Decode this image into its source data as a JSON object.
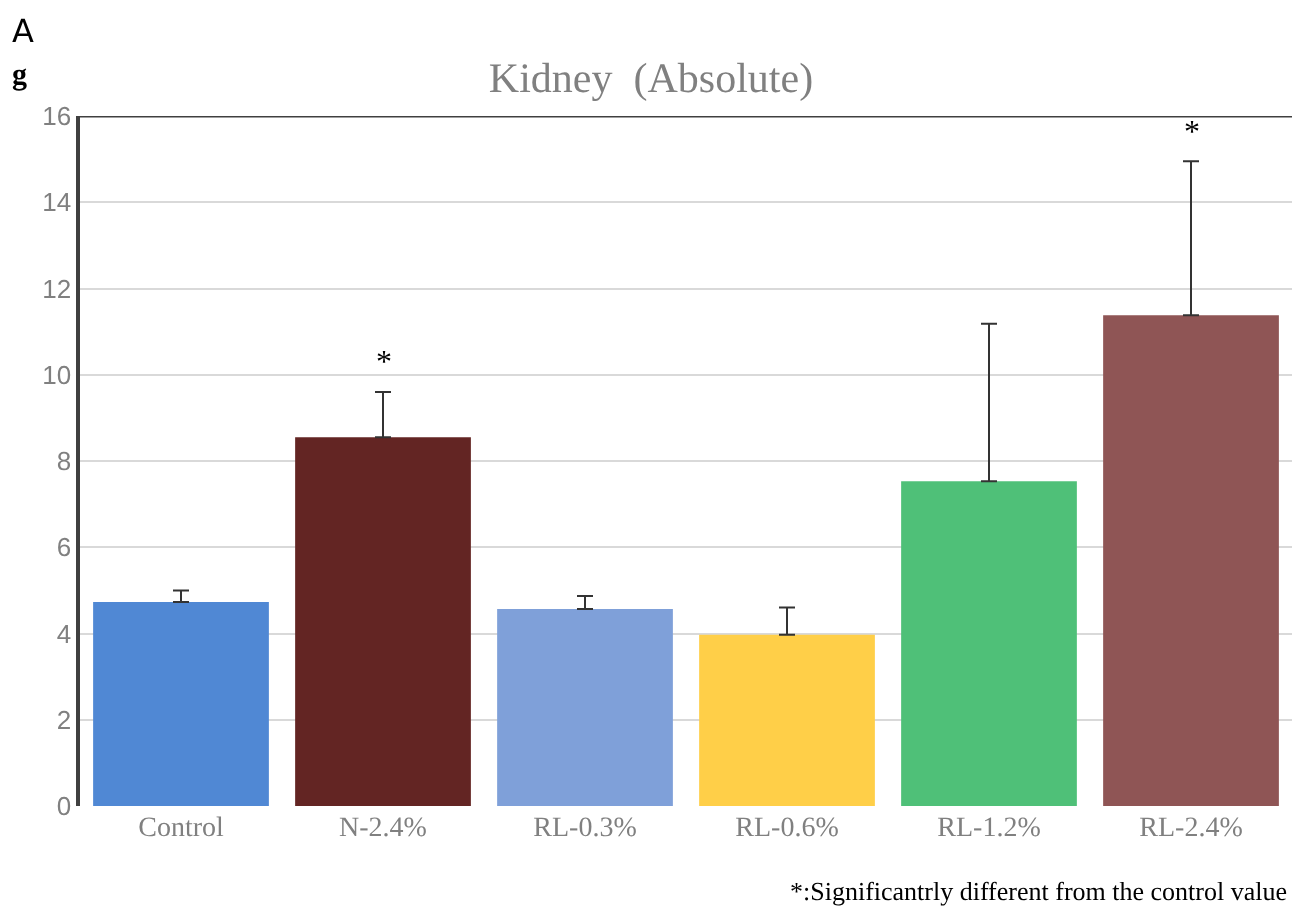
{
  "chart_data": {
    "type": "bar",
    "title": "Kidney  (Absolute)",
    "ylabel": "g",
    "categories": [
      "Control",
      "N-2.4%",
      "RL-0.3%",
      "RL-0.6%",
      "RL-1.2%",
      "RL-2.4%"
    ],
    "values": [
      4.73,
      8.55,
      4.57,
      3.97,
      7.53,
      11.38
    ],
    "errors": [
      [
        4.73,
        5.0
      ],
      [
        8.55,
        9.6
      ],
      [
        4.57,
        4.87
      ],
      [
        3.97,
        4.6
      ],
      [
        7.53,
        11.18
      ],
      [
        11.38,
        14.95
      ]
    ],
    "colors": [
      "#5088d4",
      "#632523",
      "#7fa0d9",
      "#ffcf48",
      "#4fc078",
      "#8f5555"
    ],
    "ylim": [
      0,
      16
    ],
    "yticks": [
      0,
      2,
      4,
      6,
      8,
      10,
      12,
      14,
      16
    ],
    "grid": "y",
    "legend": false,
    "annotations": [
      "A",
      "*",
      "*",
      "*:Significantrly different from the control value"
    ]
  }
}
